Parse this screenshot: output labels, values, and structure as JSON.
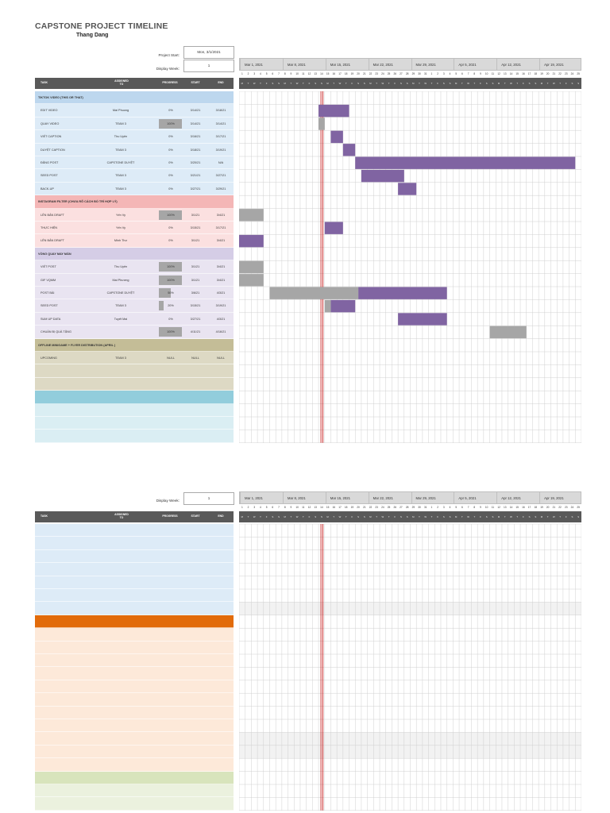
{
  "title": "CAPSTONE PROJECT TIMELINE",
  "author": "Thang Dang",
  "project_start_label": "Project Start:",
  "project_start_value": "Mon, 3/1/2021",
  "display_week_label": "Display Week:",
  "display_week_value": "1",
  "columns": {
    "task": "TASK",
    "assigned": "ASSIGNED TO",
    "progress": "PROGRESS",
    "start": "START",
    "end": "END"
  },
  "months": [
    "Mar 1, 2021",
    "Mar 8, 2021",
    "Mar 15, 2021",
    "Mar 22, 2021",
    "Mar 29, 2021",
    "Apr 5, 2021",
    "Apr 12, 2021",
    "Apr 19, 2021"
  ],
  "days": [
    "1",
    "2",
    "3",
    "4",
    "5",
    "6",
    "7",
    "8",
    "9",
    "10",
    "11",
    "12",
    "13",
    "14",
    "15",
    "16",
    "17",
    "18",
    "19",
    "20",
    "21",
    "22",
    "23",
    "24",
    "25",
    "26",
    "27",
    "28",
    "29",
    "30",
    "31",
    "1",
    "2",
    "3",
    "4",
    "5",
    "6",
    "7",
    "8",
    "9",
    "10",
    "11",
    "12",
    "13",
    "14",
    "15",
    "16",
    "17",
    "18",
    "19",
    "20",
    "21",
    "22",
    "23",
    "24",
    "25"
  ],
  "weekdays": [
    "M",
    "T",
    "W",
    "T",
    "F",
    "S",
    "S"
  ],
  "today_day_index": 13,
  "colors": {
    "section_blue": "#bdd7ee",
    "row_blue": "#ddebf7",
    "section_pink": "#f4b6b6",
    "row_pink": "#fbe0e0",
    "section_lavender": "#d5cde6",
    "row_lavender": "#e9e4f1",
    "section_khaki": "#c4bd97",
    "row_khaki": "#ddd9c4",
    "section_teal": "#92cddc",
    "row_teal": "#daeef3",
    "section_orange": "#e26b0a",
    "row_orange": "#fde9d9",
    "section_green": "#d8e4bc",
    "row_green": "#ebf1de",
    "bar_done": "#a6a6a6",
    "bar_todo": "#8064a2",
    "today": "#c00000"
  },
  "sections": [
    {
      "title": "TIKTOK VIDEO (THIS OR THAT)",
      "color": "blue",
      "tasks": [
        {
          "task": "EDIT VIDEO",
          "assigned": "Mai Phuong",
          "progress": "0%",
          "pct": 0,
          "start": "3/14/21",
          "end": "3/18/21",
          "s": 13,
          "e": 17
        },
        {
          "task": "QUAY VIDEO",
          "assigned": "TEAM 3",
          "progress": "100%",
          "pct": 100,
          "start": "3/14/21",
          "end": "3/14/21",
          "s": 13,
          "e": 13
        },
        {
          "task": "VIẾT CAPTION",
          "assigned": "Thu Uyên",
          "progress": "0%",
          "pct": 0,
          "start": "3/16/21",
          "end": "3/17/21",
          "s": 15,
          "e": 16
        },
        {
          "task": "DUYỆT CAPTION",
          "assigned": "TEAM 3",
          "progress": "0%",
          "pct": 0,
          "start": "3/18/21",
          "end": "3/19/21",
          "s": 17,
          "e": 18
        },
        {
          "task": "ĐĂNG POST",
          "assigned": "CAPSTONE DUYỆT",
          "progress": "0%",
          "pct": 0,
          "start": "3/20/21",
          "end": "N/A",
          "s": 19,
          "e": 54
        },
        {
          "task": "SEED POST",
          "assigned": "TEAM 3",
          "progress": "0%",
          "pct": 0,
          "start": "3/21/21",
          "end": "3/27/21",
          "s": 20,
          "e": 26
        },
        {
          "task": "BACK-UP",
          "assigned": "TEAM 3",
          "progress": "0%",
          "pct": 0,
          "start": "3/27/21",
          "end": "3/29/21",
          "s": 26,
          "e": 28
        }
      ]
    },
    {
      "title": "INSTAGRAM FILTER (CHƯA RÕ CÁCH BỐ TRÍ HỢP LÝ)",
      "color": "pink",
      "tasks": [
        {
          "task": "LÊN BẢN DRAFT",
          "assigned": "Yến Vy",
          "progress": "100%",
          "pct": 100,
          "start": "3/1/21",
          "end": "3/4/21",
          "s": 0,
          "e": 3
        },
        {
          "task": "THỰC HIỆN",
          "assigned": "Yến Vy",
          "progress": "0%",
          "pct": 0,
          "start": "3/15/21",
          "end": "3/17/21",
          "s": 14,
          "e": 16
        },
        {
          "task": "LÊN BẢN DRAFT",
          "assigned": "Minh Thư",
          "progress": "0%",
          "pct": 0,
          "start": "3/1/21",
          "end": "3/4/21",
          "s": 0,
          "e": 3
        }
      ]
    },
    {
      "title": "VÒNG QUAY MAY MẮN",
      "color": "lavender",
      "tasks": [
        {
          "task": "VIẾT POST",
          "assigned": "Thu Uyên",
          "progress": "100%",
          "pct": 100,
          "start": "3/1/21",
          "end": "3/4/21",
          "s": 0,
          "e": 3
        },
        {
          "task": "GIF VQMM",
          "assigned": "Mai Phương",
          "progress": "100%",
          "pct": 100,
          "start": "3/1/21",
          "end": "3/4/21",
          "s": 0,
          "e": 3
        },
        {
          "task": "POST BÀI",
          "assigned": "CAPSTONE DUYỆT",
          "progress": "50%",
          "pct": 50,
          "start": "3/6/21",
          "end": "4/3/21",
          "s": 5,
          "e": 33
        },
        {
          "task": "SEED POST",
          "assigned": "TEAM 3",
          "progress": "20%",
          "pct": 20,
          "start": "3/15/21",
          "end": "3/19/21",
          "s": 14,
          "e": 18
        },
        {
          "task": "SUM UP DATA",
          "assigned": "Tuyết Mai",
          "progress": "0%",
          "pct": 0,
          "start": "3/27/21",
          "end": "4/3/21",
          "s": 26,
          "e": 33
        },
        {
          "task": "CHUẨN BỊ QUÀ TẶNG",
          "assigned": "",
          "progress": "100%",
          "pct": 100,
          "start": "4/11/21",
          "end": "4/16/21",
          "s": 41,
          "e": 46
        }
      ]
    },
    {
      "title": "OFFLINE MINIGAME + FLYER DISTRIBUTION (APRIL )",
      "color": "khaki",
      "tasks": [
        {
          "task": "UPCOMING",
          "assigned": "TEAM 3",
          "progress": "NULL",
          "pct": 0,
          "start": "NULL",
          "end": "NULL",
          "s": -1,
          "e": -1
        }
      ]
    }
  ],
  "second_sheet": {
    "display_week_label": "Display Week:",
    "display_week_value": "1"
  }
}
